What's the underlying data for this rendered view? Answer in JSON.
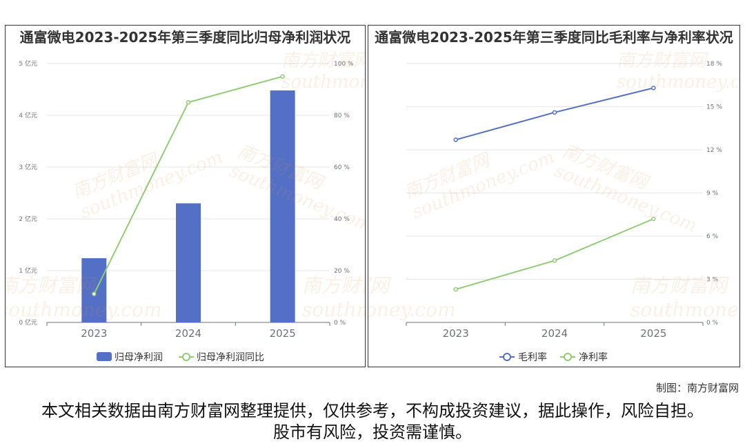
{
  "chart_data": [
    {
      "type": "bar",
      "title": "通富微电2023-2025年第三季度同比归母净利润状况",
      "categories": [
        "2023",
        "2024",
        "2025"
      ],
      "series": [
        {
          "name": "归母净利润",
          "type": "bar",
          "axis": "left",
          "values": [
            1.24,
            2.3,
            4.48
          ],
          "color": "#5470c6"
        },
        {
          "name": "归母净利润同比",
          "type": "line",
          "axis": "right",
          "values": [
            11,
            85,
            95
          ],
          "color": "#91cc75"
        }
      ],
      "y_left": {
        "ticks": [
          "0 亿元",
          "1 亿元",
          "2 亿元",
          "3 亿元",
          "4 亿元",
          "5 亿元"
        ],
        "range": [
          0,
          5
        ]
      },
      "y_right": {
        "ticks": [
          "0 %",
          "20 %",
          "40 %",
          "60 %",
          "80 %",
          "100 %"
        ],
        "range": [
          0,
          100
        ]
      },
      "legend_position": "bottom"
    },
    {
      "type": "line",
      "title": "通富微电2023-2025年第三季度同比毛利率与净利率状况",
      "categories": [
        "2023",
        "2024",
        "2025"
      ],
      "series": [
        {
          "name": "毛利率",
          "values": [
            12.7,
            14.6,
            16.3
          ],
          "color": "#5470c6"
        },
        {
          "name": "净利率",
          "values": [
            2.3,
            4.3,
            7.2
          ],
          "color": "#91cc75"
        }
      ],
      "y_right": {
        "ticks": [
          "0 %",
          "3 %",
          "6 %",
          "9 %",
          "12 %",
          "15 %",
          "18 %"
        ],
        "range": [
          0,
          18
        ]
      },
      "legend_position": "bottom"
    }
  ],
  "watermark": {
    "cn": "南方财富网",
    "en": "southmoney.com"
  },
  "credit": "制图：南方财富网",
  "disclaimer": "本文相关数据由南方财富网整理提供，仅供参考，不构成投资建议，据此操作，风险自担。股市有风险，投资需谨慎。"
}
